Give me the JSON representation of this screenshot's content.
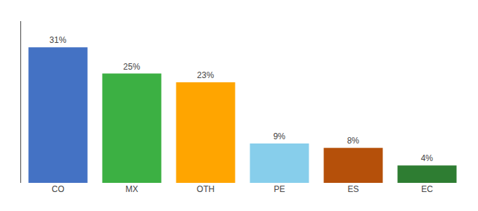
{
  "chart_data": {
    "type": "bar",
    "categories": [
      "CO",
      "MX",
      "OTH",
      "PE",
      "ES",
      "EC"
    ],
    "values": [
      31,
      25,
      23,
      9,
      8,
      4
    ],
    "value_labels": [
      "31%",
      "25%",
      "23%",
      "9%",
      "8%",
      "4%"
    ],
    "colors": [
      "#4472C4",
      "#3CB043",
      "#FFA500",
      "#87CEEB",
      "#B5500A",
      "#2E7D32"
    ],
    "ylim": [
      0,
      37
    ],
    "grid": false,
    "data_labels": true,
    "tick_labels": "x"
  }
}
